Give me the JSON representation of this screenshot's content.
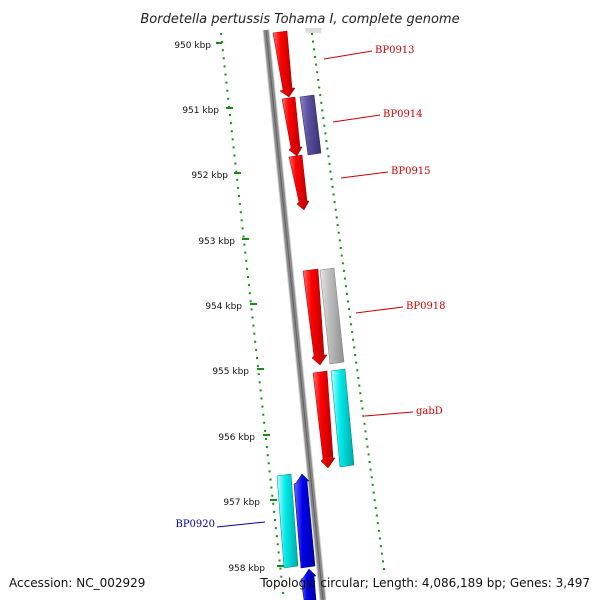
{
  "title": "Bordetella pertussis Tohama I, complete genome",
  "accession": "Accession: NC_002929",
  "summary": "Topology: circular; Length: 4,086,189 bp; Genes: 3,497",
  "ticks": [
    "950 kbp",
    "951 kbp",
    "952 kbp",
    "953 kbp",
    "954 kbp",
    "955 kbp",
    "956 kbp",
    "957 kbp",
    "958 kbp"
  ],
  "gene_labels": [
    {
      "text": "BP0913",
      "color": "#cc0000"
    },
    {
      "text": "BP0914",
      "color": "#cc0000"
    },
    {
      "text": "BP0915",
      "color": "#cc0000"
    },
    {
      "text": "BP0918",
      "color": "#cc0000"
    },
    {
      "text": "gabD",
      "color": "#cc0000"
    },
    {
      "text": "BP0920",
      "color": "#0000aa"
    }
  ],
  "colors": {
    "backbone": "#8a8a8a",
    "tick": "#1a8a1a",
    "red": "#ff0000",
    "purple": "#5a4fa0",
    "gray": "#bbbbbb",
    "cyan": "#00e6e6",
    "blue": "#0000ee"
  }
}
